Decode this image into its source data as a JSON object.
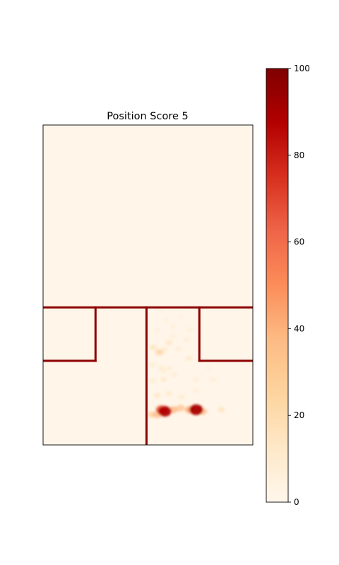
{
  "chart_data": {
    "type": "heatmap",
    "title": "Position Score 5",
    "colormap": "OrRd",
    "colors": {
      "background": "#fff5e8",
      "wall": "#8b0000",
      "axes_frame": "#000000"
    },
    "grid": false,
    "colorbar": {
      "placement": "right",
      "vmin": 0,
      "vmax": 100,
      "ticks": [
        0,
        20,
        40,
        60,
        80,
        100
      ],
      "tick_labels": [
        "0",
        "20",
        "40",
        "60",
        "80",
        "100"
      ]
    },
    "hotspots": [
      {
        "x": 0.565,
        "y": 0.11,
        "value": 65
      },
      {
        "x": 0.58,
        "y": 0.105,
        "value": 88
      },
      {
        "x": 0.545,
        "y": 0.095,
        "value": 38
      },
      {
        "x": 0.52,
        "y": 0.095,
        "value": 30
      },
      {
        "x": 0.62,
        "y": 0.11,
        "value": 40
      },
      {
        "x": 0.655,
        "y": 0.115,
        "value": 35
      },
      {
        "x": 0.7,
        "y": 0.11,
        "value": 45
      },
      {
        "x": 0.73,
        "y": 0.11,
        "value": 90
      },
      {
        "x": 0.76,
        "y": 0.105,
        "value": 38
      },
      {
        "x": 0.85,
        "y": 0.11,
        "value": 18
      },
      {
        "x": 0.545,
        "y": 0.155,
        "value": 15
      },
      {
        "x": 0.6,
        "y": 0.16,
        "value": 14
      },
      {
        "x": 0.66,
        "y": 0.15,
        "value": 12
      },
      {
        "x": 0.525,
        "y": 0.2,
        "value": 12
      },
      {
        "x": 0.575,
        "y": 0.205,
        "value": 14
      },
      {
        "x": 0.625,
        "y": 0.22,
        "value": 10
      },
      {
        "x": 0.73,
        "y": 0.205,
        "value": 10
      },
      {
        "x": 0.52,
        "y": 0.25,
        "value": 12
      },
      {
        "x": 0.6,
        "y": 0.24,
        "value": 10
      },
      {
        "x": 0.525,
        "y": 0.305,
        "value": 18
      },
      {
        "x": 0.565,
        "y": 0.24,
        "value": 12
      },
      {
        "x": 0.575,
        "y": 0.23,
        "value": 10
      },
      {
        "x": 0.555,
        "y": 0.29,
        "value": 28
      },
      {
        "x": 0.58,
        "y": 0.3,
        "value": 12
      },
      {
        "x": 0.6,
        "y": 0.32,
        "value": 16
      },
      {
        "x": 0.645,
        "y": 0.3,
        "value": 10
      },
      {
        "x": 0.695,
        "y": 0.27,
        "value": 14
      },
      {
        "x": 0.62,
        "y": 0.34,
        "value": 9
      },
      {
        "x": 0.685,
        "y": 0.33,
        "value": 10
      },
      {
        "x": 0.7,
        "y": 0.36,
        "value": 8
      },
      {
        "x": 0.62,
        "y": 0.37,
        "value": 8
      },
      {
        "x": 0.66,
        "y": 0.4,
        "value": 6
      },
      {
        "x": 0.545,
        "y": 0.36,
        "value": 6
      },
      {
        "x": 0.56,
        "y": 0.42,
        "value": 5
      },
      {
        "x": 0.59,
        "y": 0.39,
        "value": 6
      },
      {
        "x": 0.68,
        "y": 0.425,
        "value": 4
      },
      {
        "x": 0.81,
        "y": 0.205,
        "value": 10
      },
      {
        "x": 0.73,
        "y": 0.17,
        "value": 8
      },
      {
        "x": 0.79,
        "y": 0.24,
        "value": 6
      }
    ],
    "walls": [
      {
        "x1": 0.0,
        "y1": 0.43,
        "x2": 1.0,
        "y2": 0.43
      },
      {
        "x1": 0.0,
        "y1": 0.263,
        "x2": 0.25,
        "y2": 0.263
      },
      {
        "x1": 0.25,
        "y1": 0.263,
        "x2": 0.25,
        "y2": 0.43
      },
      {
        "x1": 0.493,
        "y1": 0.0,
        "x2": 0.493,
        "y2": 0.43
      },
      {
        "x1": 0.745,
        "y1": 0.263,
        "x2": 0.745,
        "y2": 0.43
      },
      {
        "x1": 0.745,
        "y1": 0.263,
        "x2": 1.0,
        "y2": 0.263
      }
    ]
  }
}
